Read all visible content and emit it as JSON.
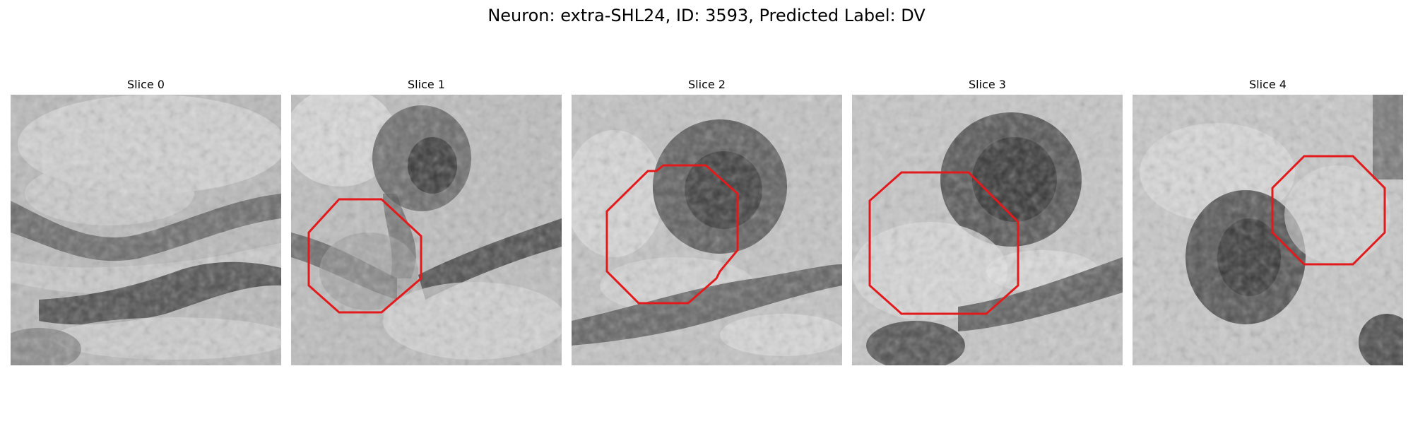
{
  "figure": {
    "title": "Neuron: extra-SHL24, ID: 3593, Predicted Label: DV"
  },
  "panels": [
    {
      "title": "Slice 0",
      "has_contour": false
    },
    {
      "title": "Slice 1",
      "has_contour": true
    },
    {
      "title": "Slice 2",
      "has_contour": true
    },
    {
      "title": "Slice 3",
      "has_contour": true
    },
    {
      "title": "Slice 4",
      "has_contour": true
    }
  ],
  "colors": {
    "contour": "#e31a1c",
    "background": "#ffffff"
  }
}
